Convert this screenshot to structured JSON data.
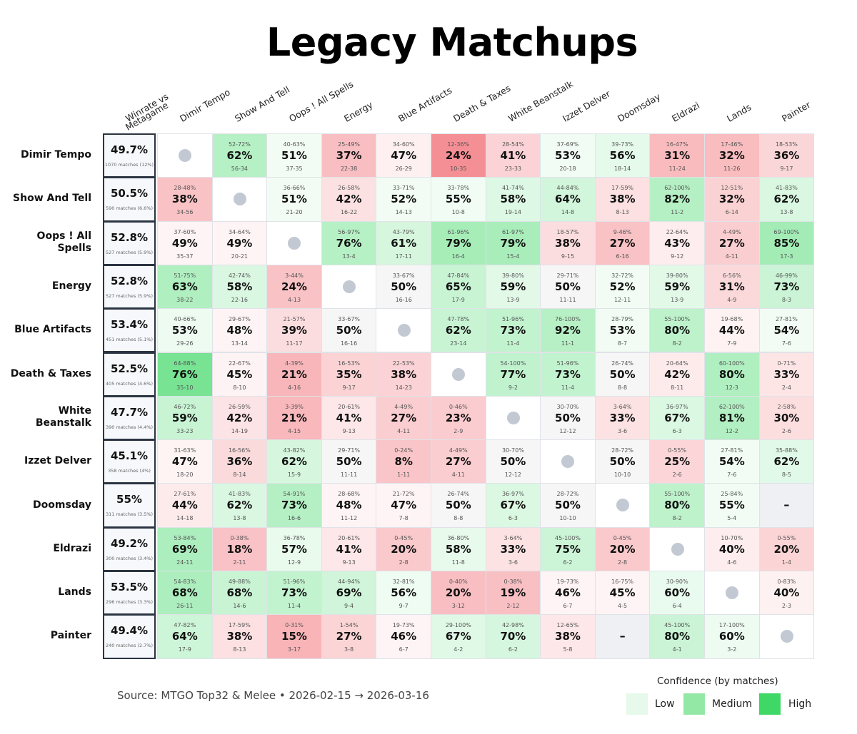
{
  "title": "Legacy Matchups",
  "chart_data": {
    "type": "heatmap",
    "title": "Legacy Matchups",
    "decks": [
      "Dimir Tempo",
      "Show And Tell",
      "Oops ! All Spells",
      "Energy",
      "Blue Artifacts",
      "Death & Taxes",
      "White Beanstalk",
      "Izzet Delver",
      "Doomsday",
      "Eldrazi",
      "Lands",
      "Painter"
    ],
    "winrate_header": "Winrate vs Metagame",
    "winrate": [
      {
        "wr": "49.7%",
        "matches": "1070 matches (12%)"
      },
      {
        "wr": "50.5%",
        "matches": "590 matches (6.6%)"
      },
      {
        "wr": "52.8%",
        "matches": "527 matches (5.9%)"
      },
      {
        "wr": "52.8%",
        "matches": "527 matches (5.9%)"
      },
      {
        "wr": "53.4%",
        "matches": "451 matches (5.1%)"
      },
      {
        "wr": "52.5%",
        "matches": "405 matches (4.6%)"
      },
      {
        "wr": "47.7%",
        "matches": "390 matches (4.4%)"
      },
      {
        "wr": "45.1%",
        "matches": "358 matches (4%)"
      },
      {
        "wr": "55%",
        "matches": "311 matches (3.5%)"
      },
      {
        "wr": "49.2%",
        "matches": "300 matches (3.4%)"
      },
      {
        "wr": "53.5%",
        "matches": "296 matches (3.3%)"
      },
      {
        "wr": "49.4%",
        "matches": "240 matches (2.7%)"
      }
    ],
    "matrix": [
      [
        null,
        {
          "ci": "52-72%",
          "pct": "62%",
          "rec": "56-34"
        },
        {
          "ci": "40-63%",
          "pct": "51%",
          "rec": "37-35"
        },
        {
          "ci": "25-49%",
          "pct": "37%",
          "rec": "22-38"
        },
        {
          "ci": "34-60%",
          "pct": "47%",
          "rec": "26-29"
        },
        {
          "ci": "12-36%",
          "pct": "24%",
          "rec": "10-35"
        },
        {
          "ci": "28-54%",
          "pct": "41%",
          "rec": "23-33"
        },
        {
          "ci": "37-69%",
          "pct": "53%",
          "rec": "20-18"
        },
        {
          "ci": "39-73%",
          "pct": "56%",
          "rec": "18-14"
        },
        {
          "ci": "16-47%",
          "pct": "31%",
          "rec": "11-24"
        },
        {
          "ci": "17-46%",
          "pct": "32%",
          "rec": "11-26"
        },
        {
          "ci": "18-53%",
          "pct": "36%",
          "rec": "9-17"
        }
      ],
      [
        {
          "ci": "28-48%",
          "pct": "38%",
          "rec": "34-56"
        },
        null,
        {
          "ci": "36-66%",
          "pct": "51%",
          "rec": "21-20"
        },
        {
          "ci": "26-58%",
          "pct": "42%",
          "rec": "16-22"
        },
        {
          "ci": "33-71%",
          "pct": "52%",
          "rec": "14-13"
        },
        {
          "ci": "33-78%",
          "pct": "55%",
          "rec": "10-8"
        },
        {
          "ci": "41-74%",
          "pct": "58%",
          "rec": "19-14"
        },
        {
          "ci": "44-84%",
          "pct": "64%",
          "rec": "14-8"
        },
        {
          "ci": "17-59%",
          "pct": "38%",
          "rec": "8-13"
        },
        {
          "ci": "62-100%",
          "pct": "82%",
          "rec": "11-2"
        },
        {
          "ci": "12-51%",
          "pct": "32%",
          "rec": "6-14"
        },
        {
          "ci": "41-83%",
          "pct": "62%",
          "rec": "13-8"
        }
      ],
      [
        {
          "ci": "37-60%",
          "pct": "49%",
          "rec": "35-37"
        },
        {
          "ci": "34-64%",
          "pct": "49%",
          "rec": "20-21"
        },
        null,
        {
          "ci": "56-97%",
          "pct": "76%",
          "rec": "13-4"
        },
        {
          "ci": "43-79%",
          "pct": "61%",
          "rec": "17-11"
        },
        {
          "ci": "61-96%",
          "pct": "79%",
          "rec": "16-4"
        },
        {
          "ci": "61-97%",
          "pct": "79%",
          "rec": "15-4"
        },
        {
          "ci": "18-57%",
          "pct": "38%",
          "rec": "9-15"
        },
        {
          "ci": "9-46%",
          "pct": "27%",
          "rec": "6-16"
        },
        {
          "ci": "22-64%",
          "pct": "43%",
          "rec": "9-12"
        },
        {
          "ci": "4-49%",
          "pct": "27%",
          "rec": "4-11"
        },
        {
          "ci": "69-100%",
          "pct": "85%",
          "rec": "17-3"
        }
      ],
      [
        {
          "ci": "51-75%",
          "pct": "63%",
          "rec": "38-22"
        },
        {
          "ci": "42-74%",
          "pct": "58%",
          "rec": "22-16"
        },
        {
          "ci": "3-44%",
          "pct": "24%",
          "rec": "4-13"
        },
        null,
        {
          "ci": "33-67%",
          "pct": "50%",
          "rec": "16-16"
        },
        {
          "ci": "47-84%",
          "pct": "65%",
          "rec": "17-9"
        },
        {
          "ci": "39-80%",
          "pct": "59%",
          "rec": "13-9"
        },
        {
          "ci": "29-71%",
          "pct": "50%",
          "rec": "11-11"
        },
        {
          "ci": "32-72%",
          "pct": "52%",
          "rec": "12-11"
        },
        {
          "ci": "39-80%",
          "pct": "59%",
          "rec": "13-9"
        },
        {
          "ci": "6-56%",
          "pct": "31%",
          "rec": "4-9"
        },
        {
          "ci": "46-99%",
          "pct": "73%",
          "rec": "8-3"
        }
      ],
      [
        {
          "ci": "40-66%",
          "pct": "53%",
          "rec": "29-26"
        },
        {
          "ci": "29-67%",
          "pct": "48%",
          "rec": "13-14"
        },
        {
          "ci": "21-57%",
          "pct": "39%",
          "rec": "11-17"
        },
        {
          "ci": "33-67%",
          "pct": "50%",
          "rec": "16-16"
        },
        null,
        {
          "ci": "47-78%",
          "pct": "62%",
          "rec": "23-14"
        },
        {
          "ci": "51-96%",
          "pct": "73%",
          "rec": "11-4"
        },
        {
          "ci": "76-100%",
          "pct": "92%",
          "rec": "11-1"
        },
        {
          "ci": "28-79%",
          "pct": "53%",
          "rec": "8-7"
        },
        {
          "ci": "55-100%",
          "pct": "80%",
          "rec": "8-2"
        },
        {
          "ci": "19-68%",
          "pct": "44%",
          "rec": "7-9"
        },
        {
          "ci": "27-81%",
          "pct": "54%",
          "rec": "7-6"
        }
      ],
      [
        {
          "ci": "64-88%",
          "pct": "76%",
          "rec": "35-10"
        },
        {
          "ci": "22-67%",
          "pct": "45%",
          "rec": "8-10"
        },
        {
          "ci": "4-39%",
          "pct": "21%",
          "rec": "4-16"
        },
        {
          "ci": "16-53%",
          "pct": "35%",
          "rec": "9-17"
        },
        {
          "ci": "22-53%",
          "pct": "38%",
          "rec": "14-23"
        },
        null,
        {
          "ci": "54-100%",
          "pct": "77%",
          "rec": "9-2"
        },
        {
          "ci": "51-96%",
          "pct": "73%",
          "rec": "11-4"
        },
        {
          "ci": "26-74%",
          "pct": "50%",
          "rec": "8-8"
        },
        {
          "ci": "20-64%",
          "pct": "42%",
          "rec": "8-11"
        },
        {
          "ci": "60-100%",
          "pct": "80%",
          "rec": "12-3"
        },
        {
          "ci": "0-71%",
          "pct": "33%",
          "rec": "2-4"
        }
      ],
      [
        {
          "ci": "46-72%",
          "pct": "59%",
          "rec": "33-23"
        },
        {
          "ci": "26-59%",
          "pct": "42%",
          "rec": "14-19"
        },
        {
          "ci": "3-39%",
          "pct": "21%",
          "rec": "4-15"
        },
        {
          "ci": "20-61%",
          "pct": "41%",
          "rec": "9-13"
        },
        {
          "ci": "4-49%",
          "pct": "27%",
          "rec": "4-11"
        },
        {
          "ci": "0-46%",
          "pct": "23%",
          "rec": "2-9"
        },
        null,
        {
          "ci": "30-70%",
          "pct": "50%",
          "rec": "12-12"
        },
        {
          "ci": "3-64%",
          "pct": "33%",
          "rec": "3-6"
        },
        {
          "ci": "36-97%",
          "pct": "67%",
          "rec": "6-3"
        },
        {
          "ci": "62-100%",
          "pct": "81%",
          "rec": "12-2"
        },
        {
          "ci": "2-58%",
          "pct": "30%",
          "rec": "2-6"
        }
      ],
      [
        {
          "ci": "31-63%",
          "pct": "47%",
          "rec": "18-20"
        },
        {
          "ci": "16-56%",
          "pct": "36%",
          "rec": "8-14"
        },
        {
          "ci": "43-82%",
          "pct": "62%",
          "rec": "15-9"
        },
        {
          "ci": "29-71%",
          "pct": "50%",
          "rec": "11-11"
        },
        {
          "ci": "0-24%",
          "pct": "8%",
          "rec": "1-11"
        },
        {
          "ci": "4-49%",
          "pct": "27%",
          "rec": "4-11"
        },
        {
          "ci": "30-70%",
          "pct": "50%",
          "rec": "12-12"
        },
        null,
        {
          "ci": "28-72%",
          "pct": "50%",
          "rec": "10-10"
        },
        {
          "ci": "0-55%",
          "pct": "25%",
          "rec": "2-6"
        },
        {
          "ci": "27-81%",
          "pct": "54%",
          "rec": "7-6"
        },
        {
          "ci": "35-88%",
          "pct": "62%",
          "rec": "8-5"
        }
      ],
      [
        {
          "ci": "27-61%",
          "pct": "44%",
          "rec": "14-18"
        },
        {
          "ci": "41-83%",
          "pct": "62%",
          "rec": "13-8"
        },
        {
          "ci": "54-91%",
          "pct": "73%",
          "rec": "16-6"
        },
        {
          "ci": "28-68%",
          "pct": "48%",
          "rec": "11-12"
        },
        {
          "ci": "21-72%",
          "pct": "47%",
          "rec": "7-8"
        },
        {
          "ci": "26-74%",
          "pct": "50%",
          "rec": "8-8"
        },
        {
          "ci": "36-97%",
          "pct": "67%",
          "rec": "6-3"
        },
        {
          "ci": "28-72%",
          "pct": "50%",
          "rec": "10-10"
        },
        null,
        {
          "ci": "55-100%",
          "pct": "80%",
          "rec": "8-2"
        },
        {
          "ci": "25-84%",
          "pct": "55%",
          "rec": "5-4"
        },
        {
          "pct": "–",
          "na": true
        }
      ],
      [
        {
          "ci": "53-84%",
          "pct": "69%",
          "rec": "24-11"
        },
        {
          "ci": "0-38%",
          "pct": "18%",
          "rec": "2-11"
        },
        {
          "ci": "36-78%",
          "pct": "57%",
          "rec": "12-9"
        },
        {
          "ci": "20-61%",
          "pct": "41%",
          "rec": "9-13"
        },
        {
          "ci": "0-45%",
          "pct": "20%",
          "rec": "2-8"
        },
        {
          "ci": "36-80%",
          "pct": "58%",
          "rec": "11-8"
        },
        {
          "ci": "3-64%",
          "pct": "33%",
          "rec": "3-6"
        },
        {
          "ci": "45-100%",
          "pct": "75%",
          "rec": "6-2"
        },
        {
          "ci": "0-45%",
          "pct": "20%",
          "rec": "2-8"
        },
        null,
        {
          "ci": "10-70%",
          "pct": "40%",
          "rec": "4-6"
        },
        {
          "ci": "0-55%",
          "pct": "20%",
          "rec": "1-4"
        }
      ],
      [
        {
          "ci": "54-83%",
          "pct": "68%",
          "rec": "26-11"
        },
        {
          "ci": "49-88%",
          "pct": "68%",
          "rec": "14-6"
        },
        {
          "ci": "51-96%",
          "pct": "73%",
          "rec": "11-4"
        },
        {
          "ci": "44-94%",
          "pct": "69%",
          "rec": "9-4"
        },
        {
          "ci": "32-81%",
          "pct": "56%",
          "rec": "9-7"
        },
        {
          "ci": "0-40%",
          "pct": "20%",
          "rec": "3-12"
        },
        {
          "ci": "0-38%",
          "pct": "19%",
          "rec": "2-12"
        },
        {
          "ci": "19-73%",
          "pct": "46%",
          "rec": "6-7"
        },
        {
          "ci": "16-75%",
          "pct": "45%",
          "rec": "4-5"
        },
        {
          "ci": "30-90%",
          "pct": "60%",
          "rec": "6-4"
        },
        null,
        {
          "ci": "0-83%",
          "pct": "40%",
          "rec": "2-3"
        }
      ],
      [
        {
          "ci": "47-82%",
          "pct": "64%",
          "rec": "17-9"
        },
        {
          "ci": "17-59%",
          "pct": "38%",
          "rec": "8-13"
        },
        {
          "ci": "0-31%",
          "pct": "15%",
          "rec": "3-17"
        },
        {
          "ci": "1-54%",
          "pct": "27%",
          "rec": "3-8"
        },
        {
          "ci": "19-73%",
          "pct": "46%",
          "rec": "6-7"
        },
        {
          "ci": "29-100%",
          "pct": "67%",
          "rec": "4-2"
        },
        {
          "ci": "42-98%",
          "pct": "70%",
          "rec": "6-2"
        },
        {
          "ci": "12-65%",
          "pct": "38%",
          "rec": "5-8"
        },
        {
          "pct": "–",
          "na": true
        },
        {
          "ci": "45-100%",
          "pct": "80%",
          "rec": "4-1"
        },
        {
          "ci": "17-100%",
          "pct": "60%",
          "rec": "3-2"
        },
        null
      ]
    ]
  },
  "source": "Source: MTGO Top32 & Melee  •  2026-02-15 → 2026-03-16",
  "legend": {
    "title": "Confidence (by matches)",
    "items": [
      {
        "label": "Low",
        "color": "#e6f9ea"
      },
      {
        "label": "Medium",
        "color": "#94e8a6"
      },
      {
        "label": "High",
        "color": "#3fd867"
      }
    ]
  },
  "colors": {
    "green": "#3fd867",
    "red": "#f0626a",
    "neutral": "#f6f6f6",
    "na": "#eef0f3",
    "dot": "#c3c9d2"
  }
}
